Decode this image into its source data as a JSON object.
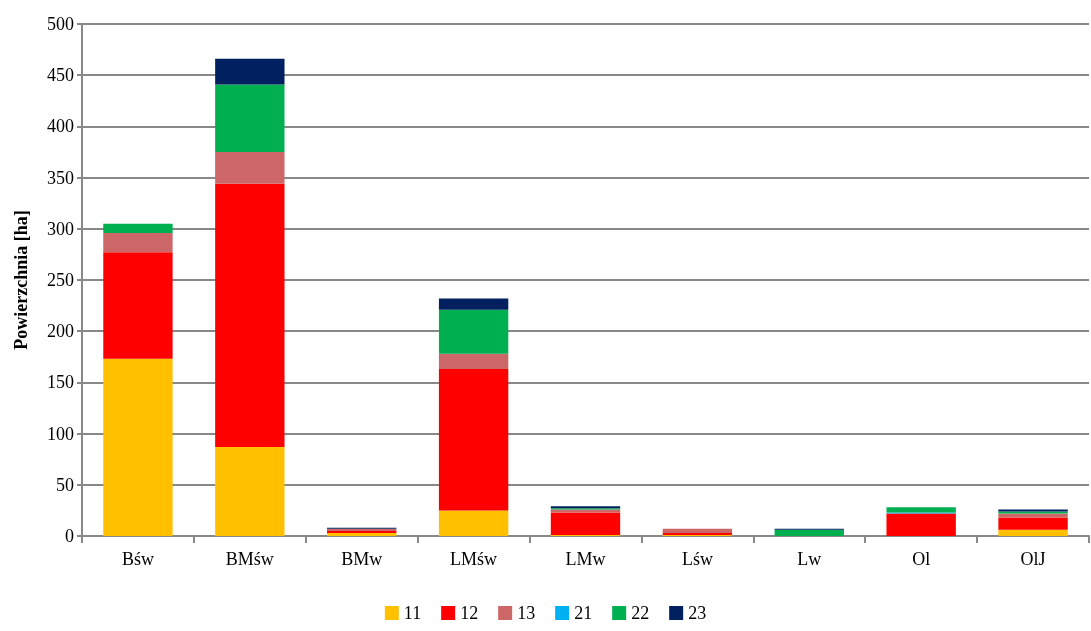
{
  "chart_data": {
    "type": "bar",
    "stacked": true,
    "ylabel": "Powierzchnia [ha]",
    "categories": [
      "Bśw",
      "BMśw",
      "BMw",
      "LMśw",
      "LMw",
      "Lśw",
      "Lw",
      "Ol",
      "OlJ"
    ],
    "series": [
      {
        "name": "11",
        "color": "#ffc000",
        "values": [
          173,
          87,
          3,
          25,
          1,
          1,
          null,
          null,
          6
        ]
      },
      {
        "name": "12",
        "color": "#ff0000",
        "values": [
          104,
          257,
          2,
          138,
          22,
          2,
          null,
          22,
          12
        ]
      },
      {
        "name": "13",
        "color": "#cd6666",
        "values": [
          19,
          31,
          2,
          15,
          3,
          4,
          null,
          null,
          4
        ]
      },
      {
        "name": "21",
        "color": "#00b0f0",
        "values": [
          null,
          null,
          null,
          null,
          null,
          null,
          null,
          1,
          null
        ]
      },
      {
        "name": "22",
        "color": "#00b050",
        "values": [
          9,
          66,
          null,
          43,
          1,
          null,
          6,
          5,
          2
        ]
      },
      {
        "name": "23",
        "color": "#002060",
        "values": [
          null,
          25,
          1,
          11,
          2,
          null,
          1,
          null,
          2
        ]
      }
    ],
    "ylim": [
      0,
      500
    ],
    "yticks": [
      0,
      50,
      100,
      150,
      200,
      250,
      300,
      350,
      400,
      450,
      500
    ],
    "grid": "y",
    "legend": "bottom"
  }
}
